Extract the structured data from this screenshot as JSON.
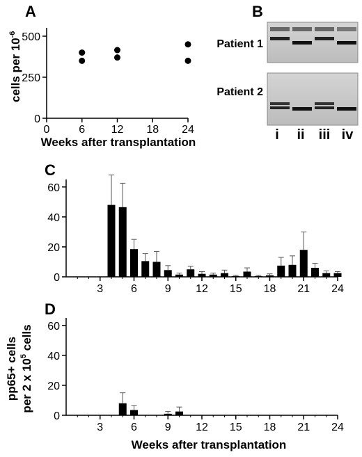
{
  "panels": {
    "a": "A",
    "b": "B",
    "c": "C",
    "d": "D"
  },
  "chart_data": [
    {
      "panel": "A",
      "type": "scatter",
      "ylabel_main": "cells per 10",
      "ylabel_exp": "-6",
      "xlabel": "Weeks after transplantation",
      "xlim": [
        0,
        24
      ],
      "ylim": [
        0,
        500
      ],
      "xticks": [
        "0",
        "6",
        "12",
        "18",
        "24"
      ],
      "yticks": [
        "0",
        "250",
        "500"
      ],
      "points": [
        {
          "x": 6,
          "y": 400
        },
        {
          "x": 6,
          "y": 350
        },
        {
          "x": 12,
          "y": 415
        },
        {
          "x": 12,
          "y": 370
        },
        {
          "x": 24,
          "y": 450
        },
        {
          "x": 24,
          "y": 350
        }
      ]
    },
    {
      "panel": "C",
      "type": "bar",
      "xlim": [
        0,
        24
      ],
      "ylim": [
        0,
        65
      ],
      "xticks": [
        "3",
        "6",
        "9",
        "12",
        "15",
        "18",
        "21",
        "24"
      ],
      "yticks": [
        "0",
        "20",
        "40",
        "60"
      ],
      "bars": [
        {
          "x": 4,
          "value": 48,
          "err": 20
        },
        {
          "x": 5,
          "value": 46.5,
          "err": 16
        },
        {
          "x": 6,
          "value": 18.5,
          "err": 6.5
        },
        {
          "x": 7,
          "value": 10.5,
          "err": 5
        },
        {
          "x": 8,
          "value": 10,
          "err": 7
        },
        {
          "x": 9,
          "value": 4.5,
          "err": 3
        },
        {
          "x": 10,
          "value": 1.5,
          "err": 1
        },
        {
          "x": 11,
          "value": 5,
          "err": 2
        },
        {
          "x": 12,
          "value": 2,
          "err": 1.5
        },
        {
          "x": 13,
          "value": 1.5,
          "err": 1
        },
        {
          "x": 14,
          "value": 2.5,
          "err": 2
        },
        {
          "x": 15,
          "value": 0.5,
          "err": 0.5
        },
        {
          "x": 16,
          "value": 3.5,
          "err": 2.5
        },
        {
          "x": 17,
          "value": 0.5,
          "err": 0.5
        },
        {
          "x": 18,
          "value": 1,
          "err": 1
        },
        {
          "x": 19,
          "value": 7.5,
          "err": 5.5
        },
        {
          "x": 20,
          "value": 8,
          "err": 6
        },
        {
          "x": 21,
          "value": 18,
          "err": 12
        },
        {
          "x": 22,
          "value": 6,
          "err": 3
        },
        {
          "x": 23,
          "value": 2.5,
          "err": 1.5
        },
        {
          "x": 24,
          "value": 2.5,
          "err": 1
        }
      ]
    },
    {
      "panel": "D",
      "type": "bar",
      "xlim": [
        0,
        24
      ],
      "ylim": [
        0,
        65
      ],
      "xticks": [
        "3",
        "6",
        "9",
        "12",
        "15",
        "18",
        "21",
        "24"
      ],
      "yticks": [
        "0",
        "20",
        "40",
        "60"
      ],
      "bars": [
        {
          "x": 5,
          "value": 8,
          "err": 7
        },
        {
          "x": 6,
          "value": 3.5,
          "err": 3
        },
        {
          "x": 9,
          "value": 1,
          "err": 1.5
        },
        {
          "x": 10,
          "value": 2.5,
          "err": 3
        }
      ]
    }
  ],
  "shared_ylabel_cd": {
    "line1": "pp65+ cells",
    "line2_pre": "per 2 x 10",
    "line2_exp": "5",
    "line2_post": " cells"
  },
  "xlabel_cd": "Weeks after transplantation",
  "gel": {
    "patient1": "Patient 1",
    "patient2": "Patient 2",
    "lanes": [
      "i",
      "ii",
      "iii",
      "iv"
    ]
  }
}
